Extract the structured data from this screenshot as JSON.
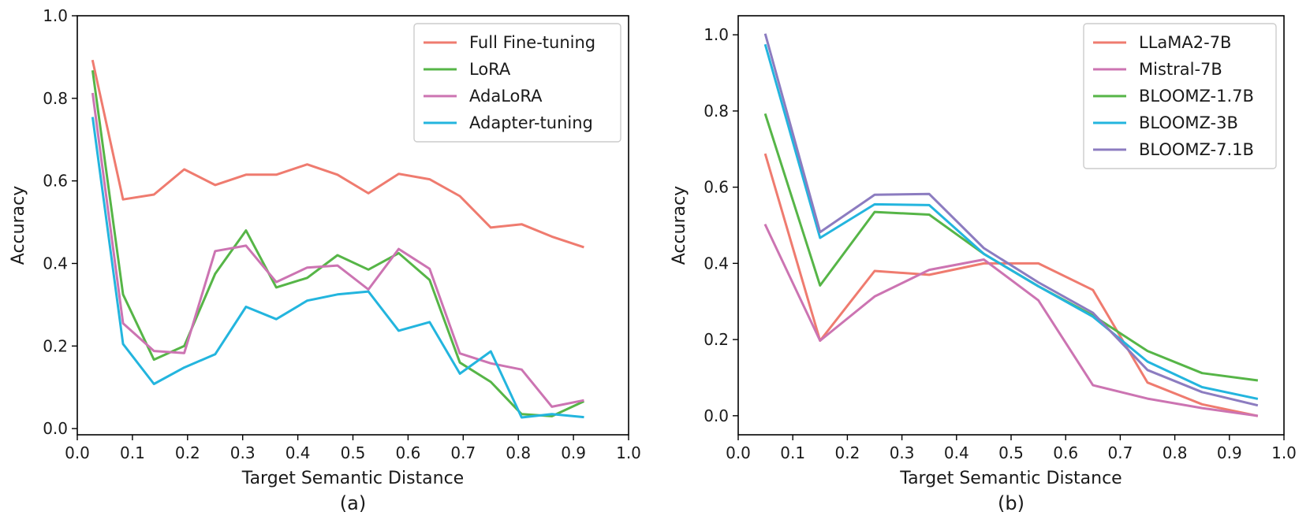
{
  "chart_data": [
    {
      "type": "line",
      "panel_label": "(a)",
      "xlabel": "Target Semantic Distance",
      "ylabel": "Accuracy",
      "xlim": [
        0.0,
        1.0
      ],
      "ylim": [
        -0.015,
        1.0
      ],
      "xticks": [
        0.0,
        0.1,
        0.2,
        0.3,
        0.4,
        0.5,
        0.6,
        0.7,
        0.8,
        0.9,
        1.0
      ],
      "xtick_labels": [
        "0.0",
        "0.1",
        "0.2",
        "0.3",
        "0.4",
        "0.5",
        "0.6",
        "0.7",
        "0.8",
        "0.9",
        "1.0"
      ],
      "yticks": [
        0.0,
        0.2,
        0.4,
        0.6,
        0.8,
        1.0
      ],
      "ytick_labels": [
        "0.0",
        "0.2",
        "0.4",
        "0.6",
        "0.8",
        "1.0"
      ],
      "legend_position": "top-right",
      "x": [
        0.028,
        0.083,
        0.139,
        0.194,
        0.25,
        0.306,
        0.361,
        0.417,
        0.472,
        0.528,
        0.583,
        0.639,
        0.694,
        0.75,
        0.806,
        0.861,
        0.917
      ],
      "series": [
        {
          "name": "Full Fine-tuning",
          "color": "#ef7b6f",
          "values": [
            0.89,
            0.555,
            0.567,
            0.628,
            0.59,
            0.615,
            0.615,
            0.64,
            0.615,
            0.57,
            0.617,
            0.604,
            0.563,
            0.487,
            0.495,
            0.465,
            0.44
          ]
        },
        {
          "name": "LoRA",
          "color": "#56b547",
          "values": [
            0.865,
            0.325,
            0.167,
            0.2,
            0.375,
            0.48,
            0.342,
            0.365,
            0.42,
            0.385,
            0.425,
            0.36,
            0.16,
            0.113,
            0.035,
            0.03,
            0.065
          ]
        },
        {
          "name": "AdaLoRA",
          "color": "#cc74b2",
          "values": [
            0.81,
            0.255,
            0.188,
            0.183,
            0.43,
            0.443,
            0.355,
            0.39,
            0.395,
            0.337,
            0.435,
            0.387,
            0.182,
            0.158,
            0.143,
            0.053,
            0.068
          ]
        },
        {
          "name": "Adapter-tuning",
          "color": "#23b5de",
          "values": [
            0.752,
            0.205,
            0.108,
            0.148,
            0.18,
            0.295,
            0.265,
            0.31,
            0.325,
            0.332,
            0.237,
            0.258,
            0.133,
            0.187,
            0.027,
            0.035,
            0.028
          ]
        }
      ]
    },
    {
      "type": "line",
      "panel_label": "(b)",
      "xlabel": "Target Semantic Distance",
      "ylabel": "Accuracy",
      "xlim": [
        0.0,
        1.0
      ],
      "ylim": [
        -0.05,
        1.05
      ],
      "xticks": [
        0.0,
        0.1,
        0.2,
        0.3,
        0.4,
        0.5,
        0.6,
        0.7,
        0.8,
        0.9,
        1.0
      ],
      "xtick_labels": [
        "0.0",
        "0.1",
        "0.2",
        "0.3",
        "0.4",
        "0.5",
        "0.6",
        "0.7",
        "0.8",
        "0.9",
        "1.0"
      ],
      "yticks": [
        0.0,
        0.2,
        0.4,
        0.6,
        0.8,
        1.0
      ],
      "ytick_labels": [
        "0.0",
        "0.2",
        "0.4",
        "0.6",
        "0.8",
        "1.0"
      ],
      "legend_position": "top-right",
      "x": [
        0.05,
        0.15,
        0.25,
        0.35,
        0.45,
        0.55,
        0.65,
        0.75,
        0.85,
        0.95
      ],
      "series": [
        {
          "name": "LLaMA2-7B",
          "color": "#ef7b6f",
          "values": [
            0.685,
            0.197,
            0.38,
            0.37,
            0.4,
            0.4,
            0.33,
            0.087,
            0.03,
            0.0
          ]
        },
        {
          "name": "Mistral-7B",
          "color": "#cc74b2",
          "values": [
            0.5,
            0.197,
            0.313,
            0.383,
            0.41,
            0.303,
            0.08,
            0.045,
            0.02,
            0.0
          ]
        },
        {
          "name": "BLOOMZ-1.7B",
          "color": "#56b547",
          "values": [
            0.79,
            0.342,
            0.535,
            0.528,
            0.425,
            0.34,
            0.263,
            0.17,
            0.112,
            0.093
          ]
        },
        {
          "name": "BLOOMZ-3B",
          "color": "#23b5de",
          "values": [
            0.972,
            0.467,
            0.555,
            0.553,
            0.425,
            0.34,
            0.26,
            0.142,
            0.075,
            0.045
          ]
        },
        {
          "name": "BLOOMZ-7.1B",
          "color": "#8c7cc0",
          "values": [
            1.0,
            0.482,
            0.58,
            0.582,
            0.44,
            0.35,
            0.27,
            0.12,
            0.062,
            0.028
          ]
        }
      ]
    }
  ]
}
